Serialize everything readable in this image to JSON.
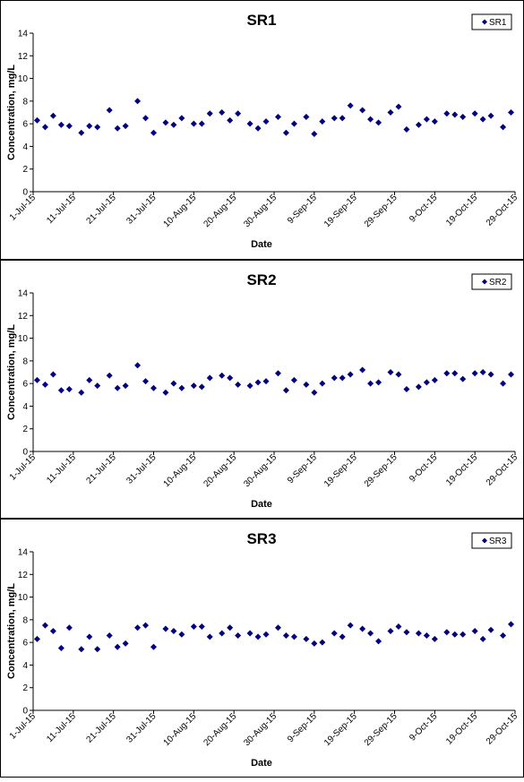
{
  "chart_data": [
    {
      "type": "scatter",
      "title": "SR1",
      "xlabel": "Date",
      "ylabel": "Concentration, mg/L",
      "ylim": [
        0,
        14
      ],
      "yticks": [
        0,
        2,
        4,
        6,
        8,
        10,
        12,
        14
      ],
      "xlim": [
        "2015-07-01",
        "2015-10-29"
      ],
      "xtick_labels": [
        "1-Jul-15",
        "11-Jul-15",
        "21-Jul-15",
        "31-Jul-15",
        "10-Aug-15",
        "20-Aug-15",
        "30-Aug-15",
        "9-Sep-15",
        "19-Sep-15",
        "29-Sep-15",
        "9-Oct-15",
        "19-Oct-15",
        "29-Oct-15"
      ],
      "grid": false,
      "legend_position": "top-right",
      "marker_color": "#000080",
      "series": [
        {
          "name": "SR1",
          "x": [
            "2015-07-02",
            "2015-07-04",
            "2015-07-06",
            "2015-07-08",
            "2015-07-10",
            "2015-07-13",
            "2015-07-15",
            "2015-07-17",
            "2015-07-20",
            "2015-07-22",
            "2015-07-24",
            "2015-07-27",
            "2015-07-29",
            "2015-07-31",
            "2015-08-03",
            "2015-08-05",
            "2015-08-07",
            "2015-08-10",
            "2015-08-12",
            "2015-08-14",
            "2015-08-17",
            "2015-08-19",
            "2015-08-21",
            "2015-08-24",
            "2015-08-26",
            "2015-08-28",
            "2015-08-31",
            "2015-09-02",
            "2015-09-04",
            "2015-09-07",
            "2015-09-09",
            "2015-09-11",
            "2015-09-14",
            "2015-09-16",
            "2015-09-18",
            "2015-09-21",
            "2015-09-23",
            "2015-09-25",
            "2015-09-28",
            "2015-09-30",
            "2015-10-02",
            "2015-10-05",
            "2015-10-07",
            "2015-10-09",
            "2015-10-12",
            "2015-10-14",
            "2015-10-16",
            "2015-10-19",
            "2015-10-21",
            "2015-10-23",
            "2015-10-26",
            "2015-10-28"
          ],
          "y": [
            6.3,
            5.7,
            6.7,
            5.9,
            5.8,
            5.2,
            5.8,
            5.7,
            7.2,
            5.6,
            5.8,
            8.0,
            6.5,
            5.2,
            6.1,
            5.9,
            6.5,
            6.0,
            6.0,
            6.9,
            7.0,
            6.3,
            6.9,
            6.0,
            5.6,
            6.2,
            6.6,
            5.2,
            6.0,
            6.6,
            5.1,
            6.2,
            6.5,
            6.5,
            7.6,
            7.2,
            6.4,
            6.1,
            7.0,
            7.5,
            5.5,
            5.9,
            6.4,
            6.2,
            6.9,
            6.8,
            6.6,
            6.9,
            6.4,
            6.7,
            5.7,
            7.0
          ]
        }
      ]
    },
    {
      "type": "scatter",
      "title": "SR2",
      "xlabel": "Date",
      "ylabel": "Concentration, mg/L",
      "ylim": [
        0,
        14
      ],
      "yticks": [
        0,
        2,
        4,
        6,
        8,
        10,
        12,
        14
      ],
      "xlim": [
        "2015-07-01",
        "2015-10-29"
      ],
      "xtick_labels": [
        "1-Jul-15",
        "11-Jul-15",
        "21-Jul-15",
        "31-Jul-15",
        "10-Aug-15",
        "20-Aug-15",
        "30-Aug-15",
        "9-Sep-15",
        "19-Sep-15",
        "29-Sep-15",
        "9-Oct-15",
        "19-Oct-15",
        "29-Oct-15"
      ],
      "grid": false,
      "legend_position": "top-right",
      "marker_color": "#000080",
      "series": [
        {
          "name": "SR2",
          "x": [
            "2015-07-02",
            "2015-07-04",
            "2015-07-06",
            "2015-07-08",
            "2015-07-10",
            "2015-07-13",
            "2015-07-15",
            "2015-07-17",
            "2015-07-20",
            "2015-07-22",
            "2015-07-24",
            "2015-07-27",
            "2015-07-29",
            "2015-07-31",
            "2015-08-03",
            "2015-08-05",
            "2015-08-07",
            "2015-08-10",
            "2015-08-12",
            "2015-08-14",
            "2015-08-17",
            "2015-08-19",
            "2015-08-21",
            "2015-08-24",
            "2015-08-26",
            "2015-08-28",
            "2015-08-31",
            "2015-09-02",
            "2015-09-04",
            "2015-09-07",
            "2015-09-09",
            "2015-09-11",
            "2015-09-14",
            "2015-09-16",
            "2015-09-18",
            "2015-09-21",
            "2015-09-23",
            "2015-09-25",
            "2015-09-28",
            "2015-09-30",
            "2015-10-02",
            "2015-10-05",
            "2015-10-07",
            "2015-10-09",
            "2015-10-12",
            "2015-10-14",
            "2015-10-16",
            "2015-10-19",
            "2015-10-21",
            "2015-10-23",
            "2015-10-26",
            "2015-10-28"
          ],
          "y": [
            6.3,
            5.9,
            6.8,
            5.4,
            5.5,
            5.2,
            6.3,
            5.8,
            6.7,
            5.6,
            5.8,
            7.6,
            6.2,
            5.6,
            5.2,
            6.0,
            5.6,
            5.8,
            5.7,
            6.5,
            6.7,
            6.5,
            5.9,
            5.8,
            6.1,
            6.2,
            6.9,
            5.4,
            6.3,
            5.9,
            5.2,
            6.0,
            6.5,
            6.5,
            6.8,
            7.2,
            6.0,
            6.1,
            7.0,
            6.8,
            5.5,
            5.7,
            6.1,
            6.3,
            6.9,
            6.9,
            6.4,
            6.9,
            7.0,
            6.8,
            6.0,
            6.8
          ]
        }
      ]
    },
    {
      "type": "scatter",
      "title": "SR3",
      "xlabel": "Date",
      "ylabel": "Concentration, mg/L",
      "ylim": [
        0,
        14
      ],
      "yticks": [
        0,
        2,
        4,
        6,
        8,
        10,
        12,
        14
      ],
      "xlim": [
        "2015-07-01",
        "2015-10-29"
      ],
      "xtick_labels": [
        "1-Jul-15",
        "11-Jul-15",
        "21-Jul-15",
        "31-Jul-15",
        "10-Aug-15",
        "20-Aug-15",
        "30-Aug-15",
        "9-Sep-15",
        "19-Sep-15",
        "29-Sep-15",
        "9-Oct-15",
        "19-Oct-15",
        "29-Oct-15"
      ],
      "grid": false,
      "legend_position": "top-right",
      "marker_color": "#000080",
      "series": [
        {
          "name": "SR3",
          "x": [
            "2015-07-02",
            "2015-07-04",
            "2015-07-06",
            "2015-07-08",
            "2015-07-10",
            "2015-07-13",
            "2015-07-15",
            "2015-07-17",
            "2015-07-20",
            "2015-07-22",
            "2015-07-24",
            "2015-07-27",
            "2015-07-29",
            "2015-07-31",
            "2015-08-03",
            "2015-08-05",
            "2015-08-07",
            "2015-08-10",
            "2015-08-12",
            "2015-08-14",
            "2015-08-17",
            "2015-08-19",
            "2015-08-21",
            "2015-08-24",
            "2015-08-26",
            "2015-08-28",
            "2015-08-31",
            "2015-09-02",
            "2015-09-04",
            "2015-09-07",
            "2015-09-09",
            "2015-09-11",
            "2015-09-14",
            "2015-09-16",
            "2015-09-18",
            "2015-09-21",
            "2015-09-23",
            "2015-09-25",
            "2015-09-28",
            "2015-09-30",
            "2015-10-02",
            "2015-10-05",
            "2015-10-07",
            "2015-10-09",
            "2015-10-12",
            "2015-10-14",
            "2015-10-16",
            "2015-10-19",
            "2015-10-21",
            "2015-10-23",
            "2015-10-26",
            "2015-10-28"
          ],
          "y": [
            6.3,
            7.5,
            7.0,
            5.5,
            7.3,
            5.4,
            6.5,
            5.4,
            6.6,
            5.6,
            5.9,
            7.3,
            7.5,
            5.6,
            7.2,
            7.0,
            6.7,
            7.4,
            7.4,
            6.5,
            6.8,
            7.3,
            6.6,
            6.8,
            6.5,
            6.7,
            7.3,
            6.6,
            6.5,
            6.3,
            5.9,
            6.0,
            6.8,
            6.5,
            7.5,
            7.2,
            6.8,
            6.1,
            7.0,
            7.4,
            6.9,
            6.8,
            6.6,
            6.3,
            6.9,
            6.7,
            6.7,
            7.0,
            6.3,
            7.1,
            6.6,
            7.6
          ]
        }
      ]
    }
  ]
}
